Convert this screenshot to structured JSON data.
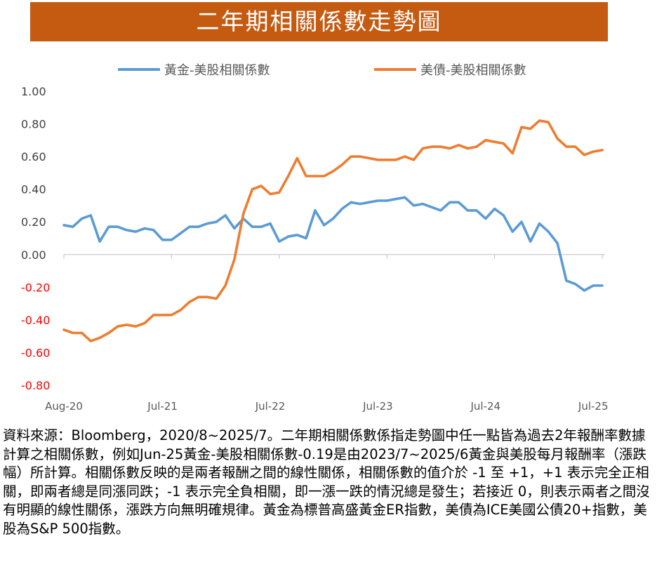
{
  "chart_data": {
    "type": "line",
    "title": "二年期相關係數走勢圖",
    "xlabel": "",
    "ylabel": "",
    "ylim": [
      -0.8,
      1.0
    ],
    "y_ticks": [
      "1.00",
      "0.80",
      "0.60",
      "0.40",
      "0.20",
      "0.00",
      "-0.20",
      "-0.40",
      "-0.60",
      "-0.80"
    ],
    "y_tick_colors": [
      "#404040",
      "#404040",
      "#404040",
      "#404040",
      "#404040",
      "#404040",
      "#ff0000",
      "#ff0000",
      "#ff0000",
      "#ff0000"
    ],
    "x_tick_labels": [
      "Aug-20",
      "Jul-21",
      "Jul-22",
      "Jul-23",
      "Jul-24",
      "Jul-25"
    ],
    "x_tick_index": [
      0,
      11,
      23,
      35,
      47,
      59
    ],
    "grid": false,
    "legend_position": "top",
    "series": [
      {
        "name": "黃金-美股相關係數",
        "color": "#5b9bd5",
        "values": [
          0.18,
          0.17,
          0.22,
          0.24,
          0.08,
          0.17,
          0.17,
          0.15,
          0.14,
          0.16,
          0.15,
          0.09,
          0.09,
          0.13,
          0.17,
          0.17,
          0.19,
          0.2,
          0.24,
          0.16,
          0.22,
          0.17,
          0.17,
          0.19,
          0.08,
          0.11,
          0.12,
          0.1,
          0.27,
          0.18,
          0.22,
          0.28,
          0.32,
          0.31,
          0.32,
          0.33,
          0.33,
          0.34,
          0.35,
          0.3,
          0.31,
          0.29,
          0.27,
          0.32,
          0.32,
          0.27,
          0.27,
          0.22,
          0.28,
          0.24,
          0.14,
          0.2,
          0.08,
          0.19,
          0.14,
          0.07,
          -0.16,
          -0.18,
          -0.22,
          -0.19,
          -0.19
        ]
      },
      {
        "name": "美債-美股相關係數",
        "color": "#ed7d31",
        "values": [
          -0.46,
          -0.48,
          -0.48,
          -0.53,
          -0.51,
          -0.48,
          -0.44,
          -0.43,
          -0.44,
          -0.42,
          -0.37,
          -0.37,
          -0.37,
          -0.34,
          -0.29,
          -0.26,
          -0.26,
          -0.27,
          -0.19,
          -0.03,
          0.25,
          0.4,
          0.42,
          0.37,
          0.38,
          0.48,
          0.59,
          0.48,
          0.48,
          0.48,
          0.51,
          0.55,
          0.6,
          0.6,
          0.59,
          0.58,
          0.58,
          0.58,
          0.6,
          0.58,
          0.65,
          0.66,
          0.66,
          0.65,
          0.67,
          0.65,
          0.66,
          0.7,
          0.69,
          0.68,
          0.62,
          0.78,
          0.77,
          0.82,
          0.81,
          0.71,
          0.66,
          0.66,
          0.61,
          0.63,
          0.64
        ]
      }
    ]
  },
  "footnote": {
    "text": "資料來源：Bloomberg，2020/8~2025/7。二年期相關係數係指走勢圖中任一點皆為過去2年報酬率數據計算之相關係數，例如Jun-25黃金-美股相關係數-0.19是由2023/7~2025/6黃金與美股每月報酬率（漲跌幅）所計算。相關係數反映的是兩者報酬之間的線性關係，相關係數的值介於 -1 至 +1，+1 表示完全正相關，即兩者總是同漲同跌；-1 表示完全負相關，即一漲一跌的情況總是發生；若接近 0，則表示兩者之間沒有明顯的線性關係，漲跌方向無明確規律。黃金為標普高盛黃金ER指數，美債為ICE美國公債20+指數，美股為S&P 500指數。"
  },
  "colors": {
    "title_background": "#c55a11",
    "title_text": "#ffffff",
    "axis": "#bfbfbf"
  }
}
